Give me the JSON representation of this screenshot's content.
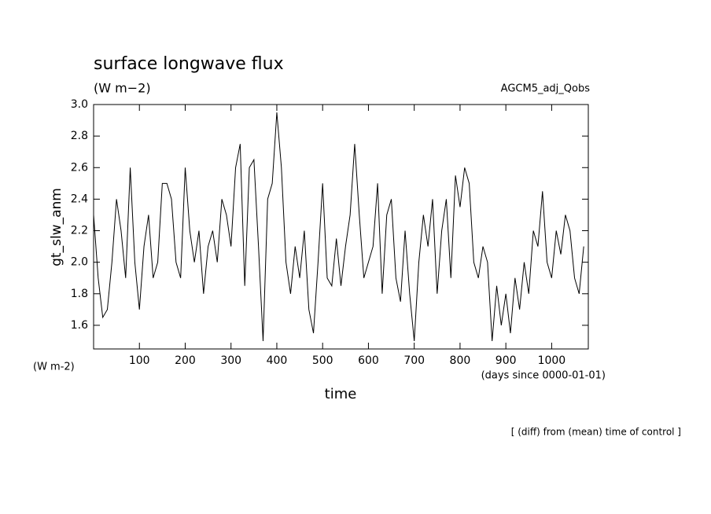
{
  "chart_data": {
    "type": "line",
    "title": "surface longwave flux",
    "subtitle": "(W m−2)",
    "y_label": "gt_slw_anm",
    "y_unit": "(W m-2)",
    "x_label": "time",
    "x_unit": "(days since 0000-01-01)",
    "footnote": "[ (diff) from (mean) time of control ]",
    "xlim": [
      0,
      1080
    ],
    "ylim": [
      1.45,
      3.0
    ],
    "xticks": [
      100,
      200,
      300,
      400,
      500,
      600,
      700,
      800,
      900,
      1000
    ],
    "yticks": [
      1.6,
      1.8,
      {
        "value": 2,
        "label": "2.0"
      },
      2.2,
      2.4,
      2.6,
      2.8,
      {
        "value": 3,
        "label": "3.0"
      }
    ],
    "x": [
      0,
      10,
      20,
      30,
      40,
      50,
      60,
      70,
      80,
      90,
      100,
      110,
      120,
      130,
      140,
      150,
      160,
      170,
      180,
      190,
      200,
      210,
      220,
      230,
      240,
      250,
      260,
      270,
      280,
      290,
      300,
      310,
      320,
      330,
      340,
      350,
      360,
      370,
      380,
      390,
      400,
      410,
      420,
      430,
      440,
      450,
      460,
      470,
      480,
      490,
      500,
      510,
      520,
      530,
      540,
      550,
      560,
      570,
      580,
      590,
      600,
      610,
      620,
      630,
      640,
      650,
      660,
      670,
      680,
      690,
      700,
      710,
      720,
      730,
      740,
      750,
      760,
      770,
      780,
      790,
      800,
      810,
      820,
      830,
      840,
      850,
      860,
      870,
      880,
      890,
      900,
      910,
      920,
      930,
      940,
      950,
      960,
      970,
      980,
      990,
      1000,
      1010,
      1020,
      1030,
      1040,
      1050,
      1060,
      1070
    ],
    "series": [
      {
        "name": "AGCM5_adj_Qobs",
        "color": "#000000",
        "values": [
          2.3,
          1.9,
          1.65,
          1.7,
          2.0,
          2.4,
          2.2,
          1.9,
          2.6,
          2.0,
          1.7,
          2.1,
          2.3,
          1.9,
          2.0,
          2.5,
          2.5,
          2.4,
          2.0,
          1.9,
          2.6,
          2.2,
          2.0,
          2.2,
          1.8,
          2.1,
          2.2,
          2.0,
          2.4,
          2.3,
          2.1,
          2.6,
          2.75,
          1.85,
          2.6,
          2.65,
          2.1,
          1.5,
          2.4,
          2.5,
          2.95,
          2.6,
          2.0,
          1.8,
          2.1,
          1.9,
          2.2,
          1.7,
          1.55,
          2.0,
          2.5,
          1.9,
          1.85,
          2.15,
          1.85,
          2.1,
          2.3,
          2.75,
          2.3,
          1.9,
          2.0,
          2.1,
          2.5,
          1.8,
          2.3,
          2.4,
          1.9,
          1.75,
          2.2,
          1.8,
          1.5,
          2.0,
          2.3,
          2.1,
          2.4,
          1.8,
          2.2,
          2.4,
          1.9,
          2.55,
          2.35,
          2.6,
          2.5,
          2.0,
          1.9,
          2.1,
          2.0,
          1.5,
          1.85,
          1.6,
          1.8,
          1.55,
          1.9,
          1.7,
          2.0,
          1.8,
          2.2,
          2.1,
          2.45,
          2.0,
          1.9,
          2.2,
          2.05,
          2.3,
          2.2,
          1.9,
          1.8,
          2.1
        ]
      }
    ]
  }
}
